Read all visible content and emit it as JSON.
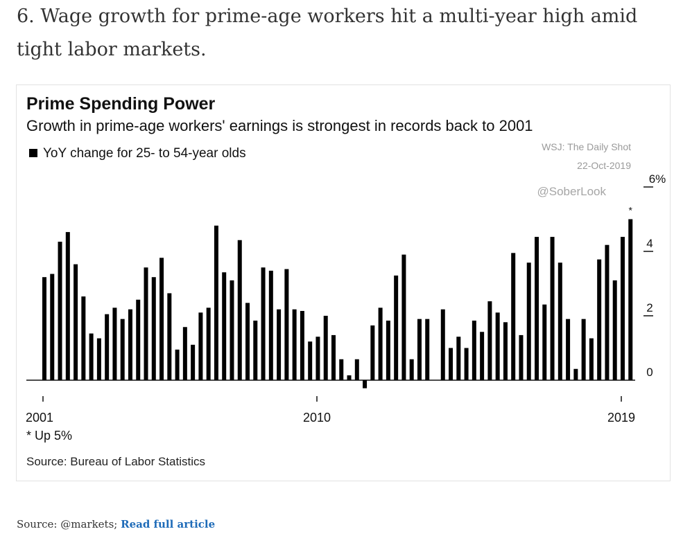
{
  "heading": "6. Wage growth for prime-age workers hit a multi-year high amid tight labor markets.",
  "footer": {
    "source_prefix": "Source: @markets;",
    "link_label": "Read full article"
  },
  "chart_data": {
    "type": "bar",
    "title": "Prime Spending Power",
    "subtitle": "Growth in prime-age workers' earnings is strongest in records back to 2001",
    "legend": "YoY change for 25- to 54-year olds",
    "watermark": [
      "WSJ: The Daily Shot",
      "22-Oct-2019",
      "@SoberLook"
    ],
    "y_ticks": [
      "0",
      "2",
      "4",
      "6%"
    ],
    "ylim": [
      0,
      6
    ],
    "x_ticks": [
      "2001",
      "2010",
      "2019"
    ],
    "x_range": [
      2001,
      2019.75
    ],
    "bar_color": "#000000",
    "annotation_marker": "*",
    "annotation_note": "* Up 5%",
    "source": "Source: Bureau of Labor Statistics",
    "series": [
      {
        "values": [
          3.2,
          3.3,
          4.3,
          4.6,
          3.6,
          2.6,
          1.45,
          1.3,
          2.05,
          2.25,
          1.9,
          2.2,
          2.5,
          3.5,
          3.2,
          3.8,
          2.7,
          0.95,
          1.65,
          1.1,
          2.1,
          2.25,
          4.8,
          3.35,
          3.1,
          4.35,
          2.4,
          1.85,
          3.5,
          3.4,
          2.2,
          3.45,
          2.2,
          2.15,
          1.2,
          1.35,
          2.0,
          1.4,
          0.65,
          0.15,
          0.65,
          -0.25,
          1.7,
          2.25,
          1.85,
          3.25,
          3.9,
          0.65,
          1.9,
          1.9,
          0.0,
          2.2,
          1.0,
          1.35,
          1.0,
          1.85,
          1.5,
          2.45,
          2.1,
          1.8,
          3.95,
          1.4,
          3.65,
          4.45,
          2.35,
          4.45,
          3.65,
          1.9,
          0.35,
          1.9,
          1.3,
          3.75,
          4.2,
          3.1,
          4.45,
          5.0
        ]
      }
    ]
  }
}
